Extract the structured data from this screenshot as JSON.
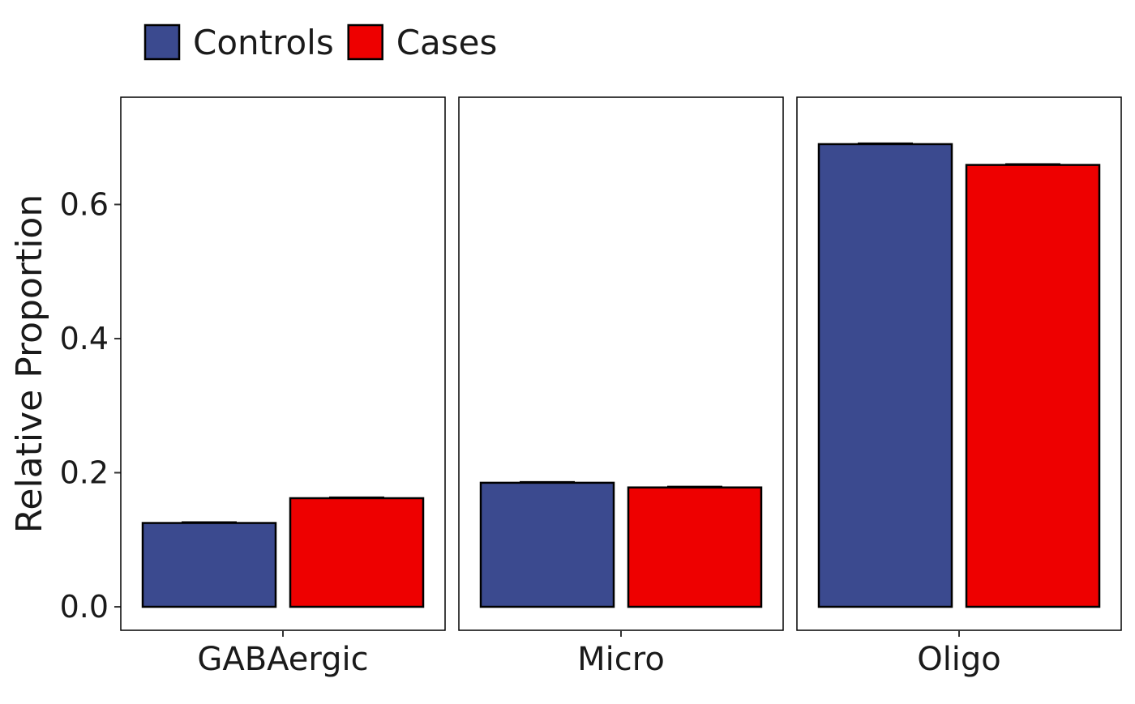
{
  "chart_data": {
    "type": "bar",
    "categories": [
      "GABAergic",
      "Micro",
      "Oligo"
    ],
    "series": [
      {
        "name": "Controls",
        "values": [
          0.125,
          0.185,
          0.69
        ],
        "errors": [
          0.001,
          0.001,
          0.001
        ]
      },
      {
        "name": "Cases",
        "values": [
          0.162,
          0.178,
          0.659
        ],
        "errors": [
          0.001,
          0.001,
          0.001
        ]
      }
    ],
    "ylabel": "Relative Proportion",
    "xlabel": "",
    "ylim": [
      -0.035,
      0.76
    ],
    "yticks": [
      0.0,
      0.2,
      0.4,
      0.6
    ],
    "ytick_labels": [
      "0.0",
      "0.2",
      "0.4",
      "0.6"
    ],
    "legend_position": "top-left",
    "grid": false,
    "colors": {
      "Controls": "#3b4a8f",
      "Cases": "#ee0000"
    }
  }
}
